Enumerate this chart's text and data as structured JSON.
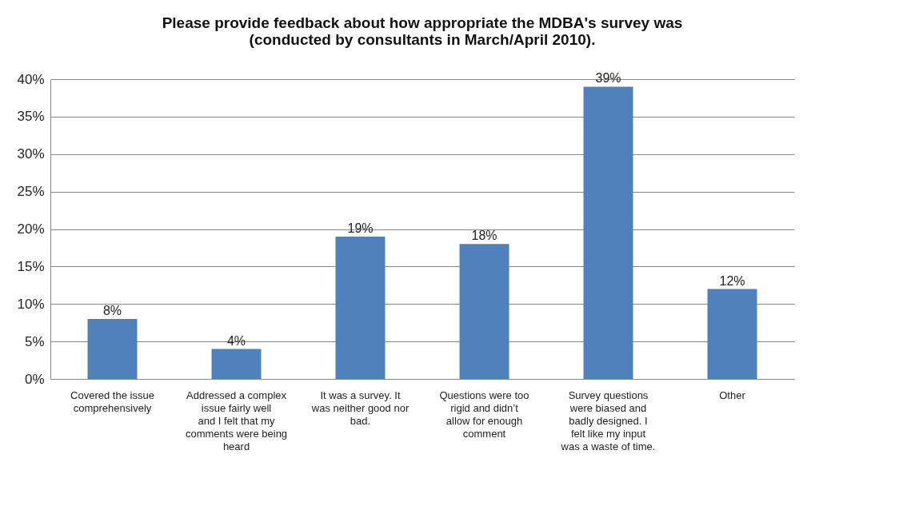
{
  "chart_data": {
    "type": "bar",
    "title": "Please provide feedback about how appropriate the MDBA's survey was (conducted by consultants in March/April 2010).",
    "categories": [
      "Covered the issue comprehensively",
      "Addressed a complex issue fairly well and I felt that my comments were being heard",
      "It was a survey.  It was neither good nor bad.",
      "Questions were too rigid and didn’t allow for enough comment",
      "Survey questions were biased and badly designed.  I felt like my input was a waste of time.",
      "Other"
    ],
    "values": [
      8,
      4,
      19,
      18,
      39,
      12
    ],
    "value_labels": [
      "8%",
      "4%",
      "19%",
      "18%",
      "39%",
      "12%"
    ],
    "color": "#4f81bd",
    "ylim": [
      0,
      40
    ],
    "yticks": [
      {
        "value": 0,
        "label": "0%"
      },
      {
        "value": 5,
        "label": "5%"
      },
      {
        "value": 10,
        "label": "10%"
      },
      {
        "value": 15,
        "label": "15%"
      },
      {
        "value": 20,
        "label": "20%"
      },
      {
        "value": 25,
        "label": "25%"
      },
      {
        "value": 30,
        "label": "30%"
      },
      {
        "value": 35,
        "label": "35%"
      },
      {
        "value": 40,
        "label": "40%"
      }
    ],
    "grid": "y"
  }
}
